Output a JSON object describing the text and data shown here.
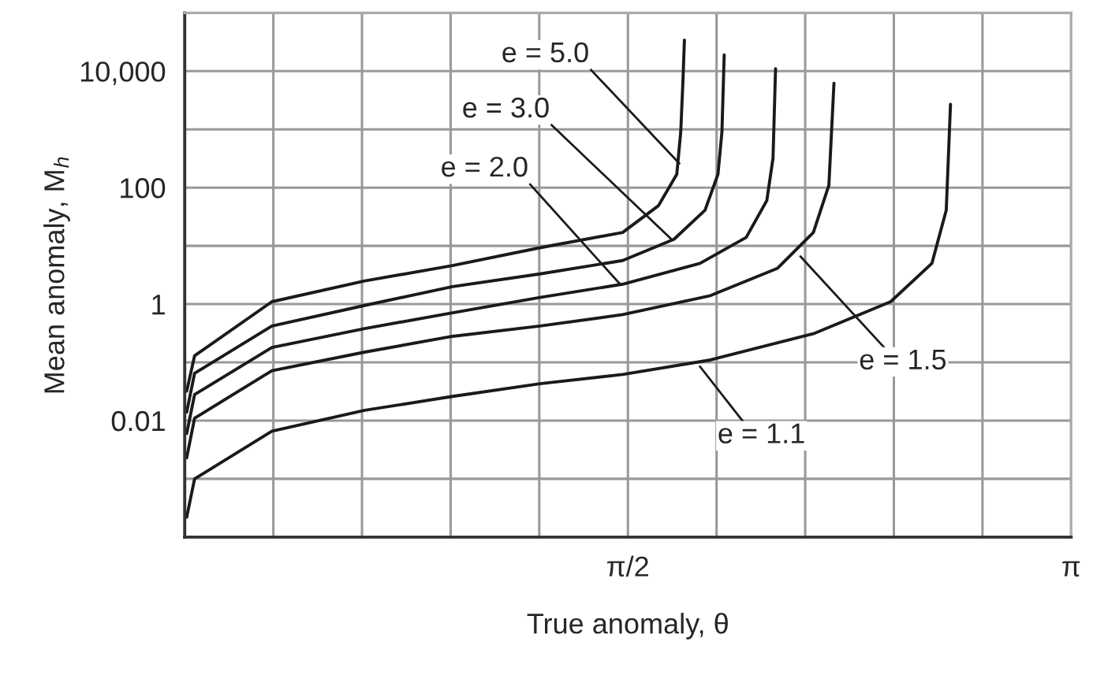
{
  "chart_data": {
    "type": "line",
    "xlabel": "True anomaly, θ",
    "ylabel": "Mean anomaly, M$_{h}$",
    "log": "y",
    "grid": true,
    "legend": false,
    "marker": "none",
    "line_style": "solid",
    "xlim": [
      0,
      3.1416
    ],
    "ylim": [
      0.0001,
      100000
    ],
    "xticks": [
      {
        "value": 0.3142,
        "label": null
      },
      {
        "value": 0.6283,
        "label": null
      },
      {
        "value": 0.9425,
        "label": null
      },
      {
        "value": 1.2566,
        "label": null
      },
      {
        "value": 1.5708,
        "label": "π/2"
      },
      {
        "value": 1.885,
        "label": null
      },
      {
        "value": 2.1991,
        "label": null
      },
      {
        "value": 2.5133,
        "label": null
      },
      {
        "value": 2.8274,
        "label": null
      },
      {
        "value": 3.1416,
        "label": "π"
      }
    ],
    "yticks": [
      {
        "value": 0.001,
        "label": null
      },
      {
        "value": 0.01,
        "label": "0.01"
      },
      {
        "value": 0.1,
        "label": null
      },
      {
        "value": 1,
        "label": "1"
      },
      {
        "value": 10,
        "label": null
      },
      {
        "value": 100,
        "label": "100"
      },
      {
        "value": 1000,
        "label": null
      },
      {
        "value": 10000,
        "label": "10,000"
      }
    ],
    "series": [
      {
        "color": "#1a1a1a",
        "x": [
          0.007,
          0.035,
          0.309,
          0.638,
          0.949,
          1.259,
          1.552,
          1.679,
          1.744,
          1.758,
          1.766,
          1.771
        ],
        "values": [
          0.032,
          0.13,
          1.1,
          2.5,
          4.6,
          9.3,
          17,
          49,
          170,
          910,
          7200,
          34000
        ]
      },
      {
        "color": "#1a1a1a",
        "x": [
          0.007,
          0.035,
          0.309,
          0.638,
          0.949,
          1.259,
          1.552,
          1.734,
          1.844,
          1.89,
          1.904,
          1.912
        ],
        "values": [
          0.014,
          0.065,
          0.42,
          0.95,
          2.0,
          3.3,
          5.6,
          13,
          41,
          170,
          910,
          19000
        ]
      },
      {
        "color": "#1a1a1a",
        "x": [
          0.007,
          0.035,
          0.309,
          0.638,
          0.949,
          1.259,
          1.552,
          1.826,
          1.99,
          2.063,
          2.085,
          2.094
        ],
        "values": [
          0.006,
          0.028,
          0.18,
          0.38,
          0.71,
          1.3,
          2.2,
          5.0,
          14,
          60,
          320,
          11000
        ]
      },
      {
        "color": "#1a1a1a",
        "x": [
          0.007,
          0.035,
          0.309,
          0.638,
          0.949,
          1.259,
          1.552,
          1.863,
          2.1,
          2.228,
          2.283,
          2.301
        ],
        "values": [
          0.0023,
          0.011,
          0.072,
          0.15,
          0.28,
          0.42,
          0.66,
          1.4,
          4.1,
          17,
          110,
          6200
        ]
      },
      {
        "color": "#1a1a1a",
        "x": [
          0.007,
          0.035,
          0.309,
          0.638,
          0.949,
          1.259,
          1.552,
          1.863,
          2.228,
          2.502,
          2.648,
          2.699,
          2.714
        ],
        "values": [
          0.00022,
          0.001,
          0.0066,
          0.015,
          0.026,
          0.043,
          0.062,
          0.11,
          0.31,
          1.1,
          5.0,
          41,
          2700
        ]
      }
    ],
    "annotations": [
      {
        "text": "e = 5.0",
        "x": 1.753,
        "y": 260
      },
      {
        "text": "e = 3.0",
        "x": 1.725,
        "y": 13
      },
      {
        "text": "e = 2.0",
        "x": 1.543,
        "y": 2.2
      },
      {
        "text": "e = 1.5",
        "x": 2.182,
        "y": 6.6
      },
      {
        "text": "e = 1.1",
        "x": 1.826,
        "y": 0.085
      }
    ]
  }
}
